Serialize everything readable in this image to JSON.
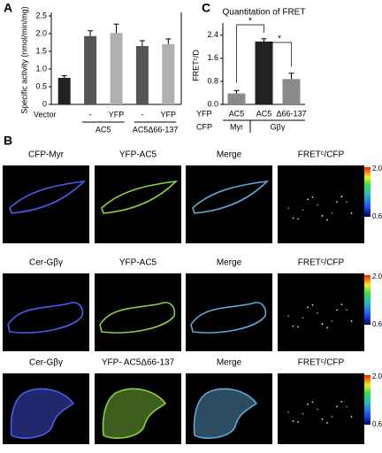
{
  "panel_labels": [
    "A",
    "B",
    "C"
  ],
  "chart_data": [
    {
      "type": "bar",
      "ylabel": "Specific activity (nmol/min/mg)",
      "categories": [
        "Vector",
        "-",
        "YFP",
        "-",
        "YFP"
      ],
      "groups": [
        "AC5",
        "AC5Δ66-137"
      ],
      "values": [
        0.75,
        1.93,
        2.02,
        1.65,
        1.7
      ],
      "errors": [
        0.06,
        0.15,
        0.25,
        0.15,
        0.15
      ],
      "colors": [
        "#222222",
        "#555555",
        "#b0b0b0",
        "#555555",
        "#b0b0b0"
      ],
      "ylim": [
        0,
        2.5
      ],
      "yticks": [
        0,
        0.5,
        {
          "value": 1,
          "label": "1.0"
        },
        1.5,
        {
          "value": 2,
          "label": "2.0"
        },
        2.5
      ]
    },
    {
      "type": "bar",
      "title": "Quantitation of FRET",
      "ylabel": "FRETᶜ/D",
      "category_title": "YFP",
      "categories": [
        "AC5",
        "AC5",
        "Δ66-137"
      ],
      "cfp_title": "CFP",
      "cfp_labels": [
        "Myr",
        "Gβγ"
      ],
      "values": [
        0.38,
        2.18,
        0.88
      ],
      "errors": [
        0.1,
        0.1,
        0.2
      ],
      "colors": [
        "#8a8a8a",
        "#222222",
        "#8a8a8a"
      ],
      "annotations": [
        "*",
        "*"
      ],
      "ylim": [
        0,
        2.7
      ],
      "yticks": [
        {
          "value": 0,
          "label": "0.0"
        },
        0.8,
        1.6,
        2.4
      ]
    }
  ],
  "panel_b": {
    "rows": [
      [
        "CFP-Myr",
        "YFP-AC5",
        "Merge",
        "FRETᶜ/CFP"
      ],
      [
        "Cer-Gβγ",
        "YFP-AC5",
        "Merge",
        "FRETᶜ/CFP"
      ],
      [
        "Cer-Gβγ",
        "YFP- AC5Δ66-137",
        "Merge",
        "FRETᶜ/CFP"
      ]
    ],
    "colorbar": [
      "2.0",
      "0.6"
    ]
  }
}
